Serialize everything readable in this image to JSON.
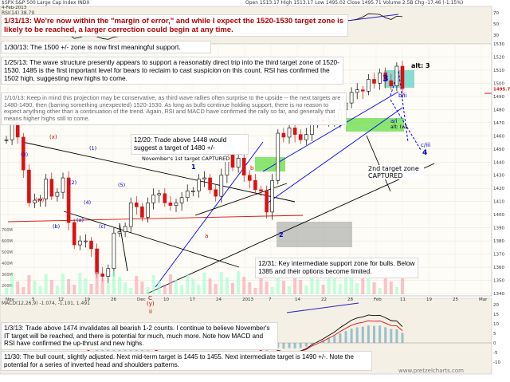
{
  "header": {
    "symbol": "$SPX",
    "name": "S&P 500 Large Cap Index",
    "exchange": "INDX",
    "date": "4-Feb-2013",
    "open": "Open 1513.17",
    "high": "High 1513.17",
    "low": "Low 1495.02",
    "close": "Close 1495.71",
    "volume": "Volume 2.5B",
    "change": "Chg -17.46 (-1.15%)",
    "rsi_label": "RSI(14) 38.79",
    "macd_label": "MACD(12,26,9) -1.074, -1.101, 1.491"
  },
  "watermark": "www.pretzelcharts.com",
  "notes": {
    "n1": "1/31/13: We're now within the \"margin of error,\" and while I expect the 1520-1530 target zone is likely to be reached, a larger correction could begin at any time.",
    "n2": "1/30/13: The 1500 +/- zone is now first meaningful support.",
    "n3": "1/25/13: The wave structure presently appears to support a reasonably direct trip into the third target zone of 1520-1530. 1485 is the first important level for bears to reclaim to cast suspicion on this count. RSI has confirmed the 1502 high, suggesting new highs to come.",
    "n4": "1/10/13: Keep in mind this projection may be conservative, as third wave rallies often surprise to the upside -- the next targets are 1480-1490, then (barring something unexpected) 1520-1530. As long as bulls continue holding support, there is no reason to expect anything other than a continuation of the trend. Again, RSI and MACD have confirmed the rally so far, and generally that means higher highs still to come.",
    "n5": "12/20: Trade above 1448 would suggest a target of 1480 +/-",
    "n6": "12/31: Key intermediate support zone for bulls. Below 1385 and their options become limited.",
    "n7": "1/3/13: Trade above 1474 invalidates all bearish 1-2 counts. I continue to believe November's IT target will be reached, and there is potential for much, much more. Note how MACD and RSI have confirmed the up-thrust and new highs.",
    "n8": "11/30: The bull count, slightly adjusted. Next mid-term target is 1445 to 1455. Next intermediate target is 1490 +/-. Note the potential for a series of inverted head and shoulders patterns."
  },
  "labels": {
    "alt3": "alt: 3",
    "w3": "3",
    "bii": "b/ii",
    "aii": "a/i",
    "altw": "alt: (w)",
    "ciii": "c/iii",
    "w4": "4",
    "target2": "2nd target zone CAPTURED",
    "novtarget": "November's 1st target CAPTURED",
    "lx": "(x)",
    "lw": "(w)",
    "lc": "C",
    "ly": "(y)",
    "lii": "ii",
    "l1": "1",
    "l2": "2",
    "la": "a",
    "lb": "b",
    "l1p": "(1)",
    "l2p": "(2)",
    "l3p": "(3)",
    "l4p": "(4)",
    "l5p": "(5)",
    "lap": "(a)",
    "lbp": "(b)",
    "lcp": "(c)"
  },
  "chart_data": {
    "type": "candlestick",
    "title": "$SPX S&P 500 Large Cap Index INDX",
    "y_ticks": [
      1340,
      1350,
      1360,
      1370,
      1380,
      1390,
      1400,
      1410,
      1420,
      1430,
      1440,
      1450,
      1460,
      1470,
      1480,
      1490,
      1500,
      1510,
      1520,
      1530
    ],
    "x_ticks": [
      "Nov",
      "Dec",
      "2013",
      "Feb",
      "Mar",
      "11",
      "18",
      "25",
      "4"
    ],
    "x_tick_text": [
      "Nov",
      "5",
      "12",
      "19",
      "26",
      "Dec",
      "10",
      "17",
      "24",
      "2013",
      "7",
      "14",
      "22",
      "28",
      "Feb",
      "11",
      "19",
      "25",
      "Mar"
    ],
    "volume_ticks": [
      "700M",
      "600M",
      "500M",
      "400M",
      "300M",
      "200M"
    ],
    "rsi_ticks": [
      70,
      50,
      30
    ],
    "macd_ticks": [
      20,
      15,
      10,
      5,
      0,
      -5,
      -10
    ],
    "last_price": 1495.71,
    "price_series": [
      {
        "d": "Oct 11",
        "c": 1457
      },
      {
        "d": "Oct 15",
        "c": 1470
      },
      {
        "d": "Oct 18",
        "c": 1459
      },
      {
        "d": "Oct 22",
        "c": 1434
      },
      {
        "d": "Oct 24",
        "c": 1409
      },
      {
        "d": "Oct 26",
        "c": 1411
      },
      {
        "d": "Oct 31",
        "c": 1412
      },
      {
        "d": "Nov 1",
        "c": 1427
      },
      {
        "d": "Nov 2",
        "c": 1414
      },
      {
        "d": "Nov 5",
        "c": 1417
      },
      {
        "d": "Nov 6",
        "c": 1428
      },
      {
        "d": "Nov 7",
        "c": 1394
      },
      {
        "d": "Nov 8",
        "c": 1377
      },
      {
        "d": "Nov 9",
        "c": 1380
      },
      {
        "d": "Nov 12",
        "c": 1380
      },
      {
        "d": "Nov 13",
        "c": 1374
      },
      {
        "d": "Nov 14",
        "c": 1355
      },
      {
        "d": "Nov 15",
        "c": 1353
      },
      {
        "d": "Nov 16",
        "c": 1359
      },
      {
        "d": "Nov 19",
        "c": 1386
      },
      {
        "d": "Nov 20",
        "c": 1387
      },
      {
        "d": "Nov 21",
        "c": 1391
      },
      {
        "d": "Nov 23",
        "c": 1409
      },
      {
        "d": "Nov 26",
        "c": 1406
      },
      {
        "d": "Nov 27",
        "c": 1398
      },
      {
        "d": "Nov 28",
        "c": 1409
      },
      {
        "d": "Nov 29",
        "c": 1415
      },
      {
        "d": "Nov 30",
        "c": 1416
      },
      {
        "d": "Dec 3",
        "c": 1409
      },
      {
        "d": "Dec 4",
        "c": 1407
      },
      {
        "d": "Dec 5",
        "c": 1409
      },
      {
        "d": "Dec 6",
        "c": 1413
      },
      {
        "d": "Dec 7",
        "c": 1418
      },
      {
        "d": "Dec 10",
        "c": 1418
      },
      {
        "d": "Dec 11",
        "c": 1427
      },
      {
        "d": "Dec 12",
        "c": 1428
      },
      {
        "d": "Dec 13",
        "c": 1419
      },
      {
        "d": "Dec 14",
        "c": 1414
      },
      {
        "d": "Dec 17",
        "c": 1430
      },
      {
        "d": "Dec 18",
        "c": 1446
      },
      {
        "d": "Dec 19",
        "c": 1436
      },
      {
        "d": "Dec 20",
        "c": 1443
      },
      {
        "d": "Dec 21",
        "c": 1430
      },
      {
        "d": "Dec 24",
        "c": 1426
      },
      {
        "d": "Dec 26",
        "c": 1419
      },
      {
        "d": "Dec 27",
        "c": 1418
      },
      {
        "d": "Dec 28",
        "c": 1402
      },
      {
        "d": "Dec 31",
        "c": 1426
      },
      {
        "d": "Jan 2",
        "c": 1462
      },
      {
        "d": "Jan 3",
        "c": 1459
      },
      {
        "d": "Jan 4",
        "c": 1466
      },
      {
        "d": "Jan 7",
        "c": 1461
      },
      {
        "d": "Jan 8",
        "c": 1457
      },
      {
        "d": "Jan 9",
        "c": 1461
      },
      {
        "d": "Jan 10",
        "c": 1472
      },
      {
        "d": "Jan 11",
        "c": 1472
      },
      {
        "d": "Jan 14",
        "c": 1471
      },
      {
        "d": "Jan 15",
        "c": 1472
      },
      {
        "d": "Jan 16",
        "c": 1472
      },
      {
        "d": "Jan 17",
        "c": 1480
      },
      {
        "d": "Jan 18",
        "c": 1485
      },
      {
        "d": "Jan 22",
        "c": 1493
      },
      {
        "d": "Jan 23",
        "c": 1495
      },
      {
        "d": "Jan 24",
        "c": 1494
      },
      {
        "d": "Jan 25",
        "c": 1503
      },
      {
        "d": "Jan 28",
        "c": 1500
      },
      {
        "d": "Jan 29",
        "c": 1508
      },
      {
        "d": "Jan 30",
        "c": 1502
      },
      {
        "d": "Jan 31",
        "c": 1498
      },
      {
        "d": "Feb 1",
        "c": 1513
      },
      {
        "d": "Feb 4",
        "c": 1496
      }
    ]
  }
}
